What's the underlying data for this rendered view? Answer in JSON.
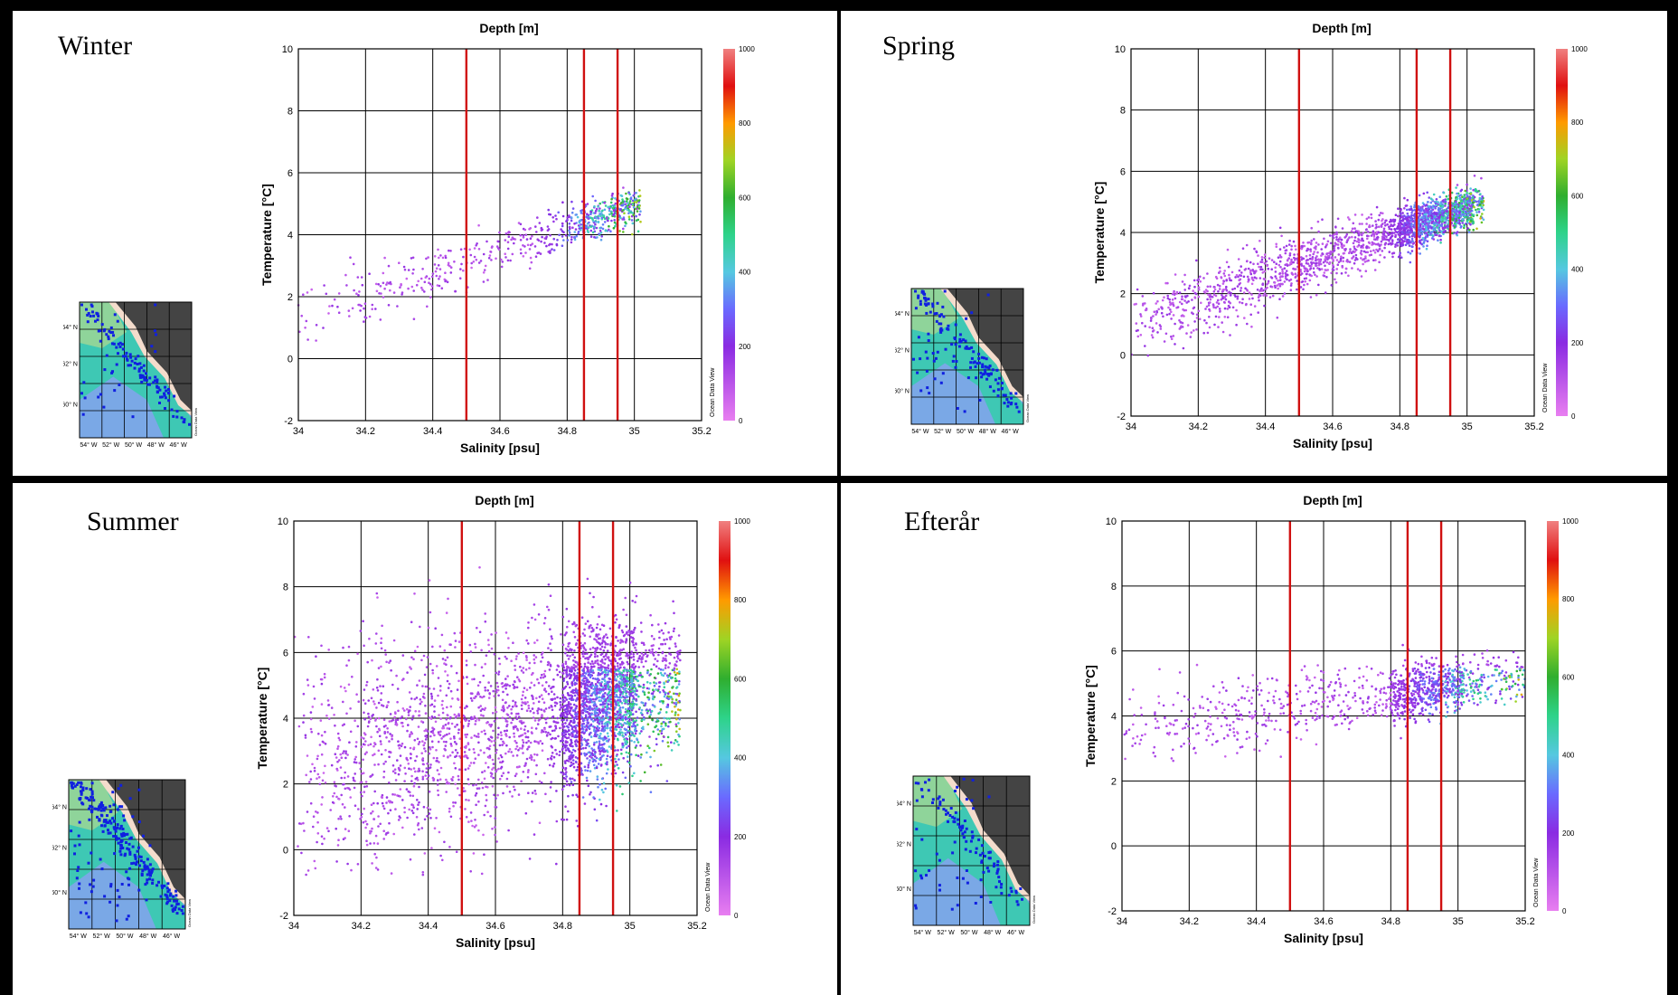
{
  "chart_data": [
    {
      "type": "scatter",
      "season_label": "Winter",
      "title": "Depth [m]",
      "xlabel": "Salinity [psu]",
      "ylabel": "Temperature [°C]",
      "xlim": [
        34,
        35.2
      ],
      "ylim": [
        -2,
        10
      ],
      "x_ticks": [
        "34",
        "34.2",
        "34.4",
        "34.6",
        "34.8",
        "35",
        "35.2"
      ],
      "y_ticks": [
        "-2",
        "0",
        "2",
        "4",
        "6",
        "8",
        "10"
      ],
      "grid": true,
      "reference_lines_x": [
        34.5,
        34.85,
        34.95
      ],
      "colorbar": {
        "label": "Depth [m]",
        "range": [
          0,
          1000
        ],
        "ticks": [
          "0",
          "200",
          "400",
          "600",
          "800",
          "1000"
        ]
      },
      "watermark": "Ocean Data View",
      "cloud": {
        "n": 650,
        "xmin": 34.0,
        "xmax": 35.02,
        "t0": 1.3,
        "t1": 5.0,
        "spread": 0.55,
        "deep_from": 34.7,
        "tlow": -0.2,
        "thigh": 5.6
      },
      "inset": {
        "lat_labels": [
          "64° N",
          "62° N",
          "60° N"
        ],
        "lon_labels": [
          "54° W",
          "52° W",
          "50° W",
          "48° W",
          "46° W"
        ],
        "credit": "Ocean Data View",
        "n_stations": 130
      }
    },
    {
      "type": "scatter",
      "season_label": "Spring",
      "title": "Depth [m]",
      "xlabel": "Salinity [psu]",
      "ylabel": "Temperature [°C]",
      "xlim": [
        34,
        35.2
      ],
      "ylim": [
        -2,
        10
      ],
      "x_ticks": [
        "34",
        "34.2",
        "34.4",
        "34.6",
        "34.8",
        "35",
        "35.2"
      ],
      "y_ticks": [
        "-2",
        "0",
        "2",
        "4",
        "6",
        "8",
        "10"
      ],
      "grid": true,
      "reference_lines_x": [
        34.5,
        34.85,
        34.95
      ],
      "colorbar": {
        "label": "Depth [m]",
        "range": [
          0,
          1000
        ],
        "ticks": [
          "0",
          "200",
          "400",
          "600",
          "800",
          "1000"
        ]
      },
      "watermark": "Ocean Data View",
      "cloud": {
        "n": 2200,
        "xmin": 34.0,
        "xmax": 35.05,
        "t0": 1.0,
        "t1": 5.0,
        "spread": 0.6,
        "deep_from": 34.75,
        "tlow": -0.6,
        "thigh": 6.2
      },
      "inset": {
        "lat_labels": [
          "64° N",
          "62° N",
          "60° N"
        ],
        "lon_labels": [
          "54° W",
          "52° W",
          "50° W",
          "48° W",
          "46° W"
        ],
        "credit": "Ocean Data View",
        "n_stations": 150
      }
    },
    {
      "type": "scatter",
      "season_label": "Summer",
      "title": "Depth [m]",
      "xlabel": "Salinity [psu]",
      "ylabel": "Temperature [°C]",
      "xlim": [
        34,
        35.2
      ],
      "ylim": [
        -2,
        10
      ],
      "x_ticks": [
        "34",
        "34.2",
        "34.4",
        "34.6",
        "34.8",
        "35",
        "35.2"
      ],
      "y_ticks": [
        "-2",
        "0",
        "2",
        "4",
        "6",
        "8",
        "10"
      ],
      "grid": true,
      "reference_lines_x": [
        34.5,
        34.85,
        34.95
      ],
      "colorbar": {
        "label": "Depth [m]",
        "range": [
          0,
          1000
        ],
        "ticks": [
          "0",
          "200",
          "400",
          "600",
          "800",
          "1000"
        ]
      },
      "watermark": "Ocean Data View",
      "cloud": {
        "n": 3600,
        "xmin": 34.0,
        "xmax": 35.15,
        "t0": 2.5,
        "t1": 5.0,
        "spread": 1.9,
        "deep_from": 34.75,
        "tlow": -0.8,
        "thigh": 9.8
      },
      "inset": {
        "lat_labels": [
          "64° N",
          "62° N",
          "60° N"
        ],
        "lon_labels": [
          "54° W",
          "52° W",
          "50° W",
          "48° W",
          "46° W"
        ],
        "credit": "Ocean Data View",
        "n_stations": 260
      }
    },
    {
      "type": "scatter",
      "season_label": "Efterår",
      "title": "Depth [m]",
      "xlabel": "Salinity [psu]",
      "ylabel": "Temperature [°C]",
      "xlim": [
        34,
        35.2
      ],
      "ylim": [
        -2,
        10
      ],
      "x_ticks": [
        "34",
        "34.2",
        "34.4",
        "34.6",
        "34.8",
        "35",
        "35.2"
      ],
      "y_ticks": [
        "-2",
        "0",
        "2",
        "4",
        "6",
        "8",
        "10"
      ],
      "grid": true,
      "reference_lines_x": [
        34.5,
        34.85,
        34.95
      ],
      "colorbar": {
        "label": "Depth [m]",
        "range": [
          0,
          1000
        ],
        "ticks": [
          "0",
          "200",
          "400",
          "600",
          "800",
          "1000"
        ]
      },
      "watermark": "Ocean Data View",
      "cloud": {
        "n": 1100,
        "xmin": 34.0,
        "xmax": 35.2,
        "t0": 3.6,
        "t1": 5.2,
        "spread": 0.7,
        "deep_from": 34.8,
        "tlow": -0.2,
        "thigh": 7.6
      },
      "inset": {
        "lat_labels": [
          "64° N",
          "62° N",
          "60° N"
        ],
        "lon_labels": [
          "54° W",
          "52° W",
          "50° W",
          "48° W",
          "46° W"
        ],
        "credit": "Ocean Data View",
        "n_stations": 120
      }
    }
  ]
}
